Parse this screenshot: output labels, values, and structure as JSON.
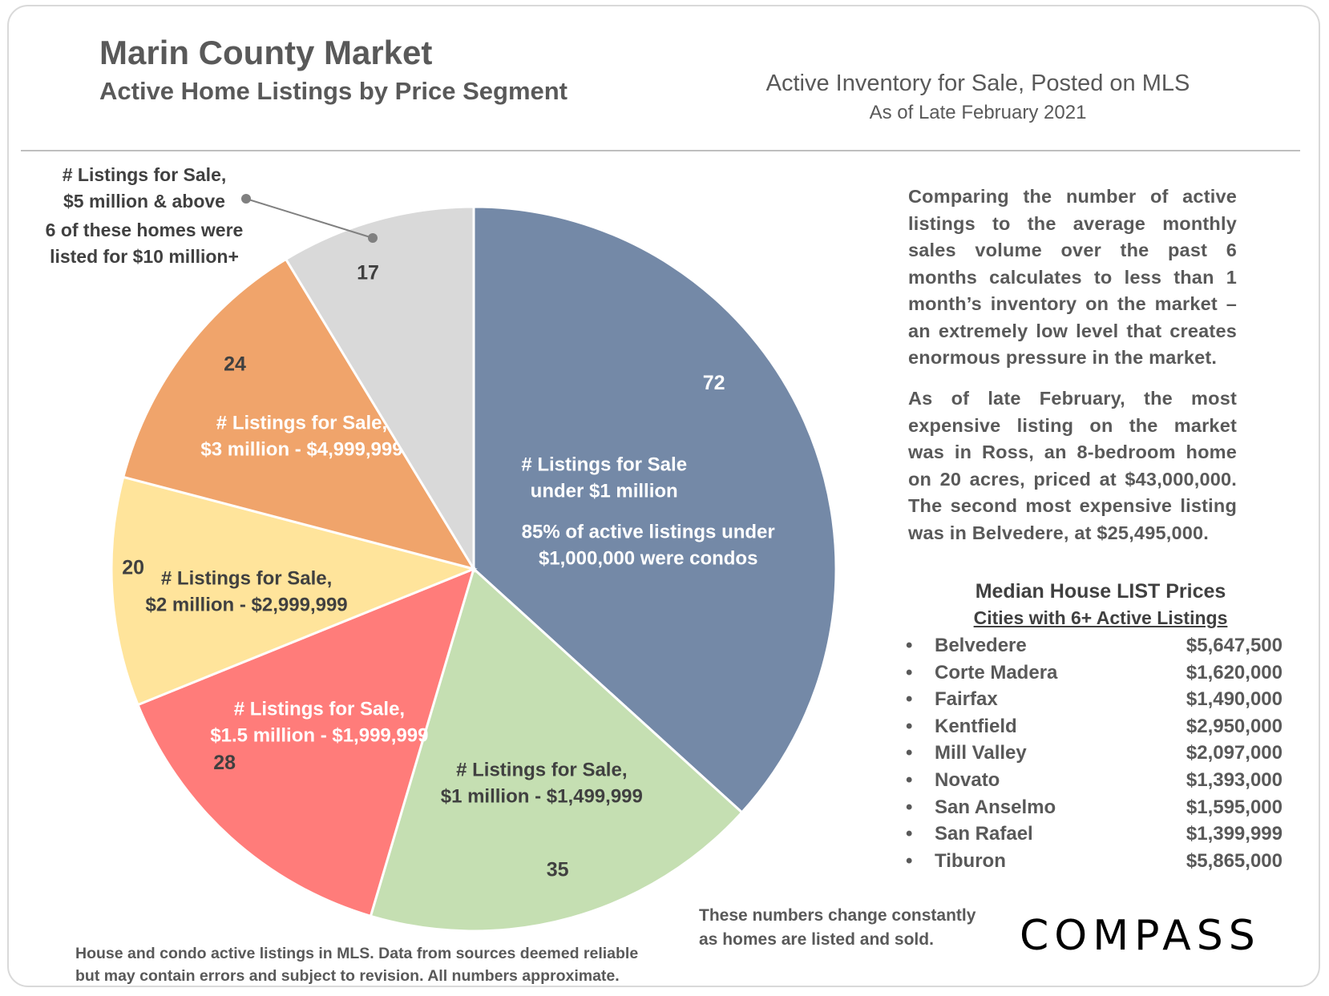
{
  "header": {
    "title": "Marin County Market",
    "subtitle": "Active Home Listings by Price Segment",
    "right_line1": "Active Inventory for Sale, Posted on MLS",
    "right_line2": "As of Late February 2021"
  },
  "chart_data": {
    "type": "pie",
    "categories": [
      "# Listings for Sale under $1 million",
      "# Listings for Sale, $1 million - $1,499,999",
      "# Listings for Sale, $1.5 million - $1,999,999",
      "# Listings for Sale, $2 million - $2,999,999",
      "# Listings for Sale, $3 million - $4,999,999",
      "# Listings for Sale, $5 million & above"
    ],
    "values": [
      72,
      35,
      28,
      20,
      24,
      17
    ],
    "colors": [
      "#7489a7",
      "#c5dfb2",
      "#ff7c7a",
      "#ffe49b",
      "#f0a46b",
      "#d9d9d9"
    ],
    "slice_labels": [
      [
        "# Listings for Sale",
        "under $1 million"
      ],
      [
        "# Listings for Sale,",
        "$1 million - $1,499,999"
      ],
      [
        "# Listings for Sale,",
        "$1.5 million - $1,999,999"
      ],
      [
        "# Listings for Sale,",
        "$2 million - $2,999,999"
      ],
      [
        "# Listings for Sale,",
        "$3 million - $4,999,999"
      ],
      []
    ],
    "slice_notes": [
      [
        "85% of active listings under",
        "$1,000,000 were condos"
      ],
      [],
      [],
      [],
      [],
      []
    ],
    "callout": [
      "# Listings for Sale,",
      "$5 million & above",
      "6 of these homes were",
      "listed for $10 million+"
    ]
  },
  "paragraph1": [
    "Comparing the number of active",
    "listings to the average monthly",
    "sales volume over the past 6",
    "months calculates to less than 1",
    "month’s inventory on the market –",
    "an extremely low level that creates",
    "enormous pressure in the market."
  ],
  "paragraph2": [
    "As of late February, the most",
    "expensive listing on the market",
    "was in Ross, an 8-bedroom home",
    "on 20 acres, priced at $43,000,000.",
    "The second most expensive listing",
    "was in Belvedere, at $25,495,000."
  ],
  "median": {
    "title": "Median House LIST Prices",
    "subtitle": "Cities with 6+ Active Listings",
    "bullet": "•",
    "rows": [
      {
        "city": "Belvedere",
        "price": "$5,647,500"
      },
      {
        "city": "Corte Madera",
        "price": "$1,620,000"
      },
      {
        "city": "Fairfax",
        "price": "$1,490,000"
      },
      {
        "city": "Kentfield",
        "price": "$2,950,000"
      },
      {
        "city": "Mill Valley",
        "price": "$2,097,000"
      },
      {
        "city": "Novato",
        "price": "$1,393,000"
      },
      {
        "city": "San Anselmo",
        "price": "$1,595,000"
      },
      {
        "city": "San Rafael",
        "price": "$1,399,999"
      },
      {
        "city": "Tiburon",
        "price": "$5,865,000"
      }
    ]
  },
  "note": [
    "These numbers change constantly",
    "as homes are listed and sold."
  ],
  "footer": [
    "House and condo active listings in MLS. Data from sources deemed reliable",
    "but may contain errors and subject to revision. All numbers approximate."
  ],
  "logo": "COMPASS"
}
